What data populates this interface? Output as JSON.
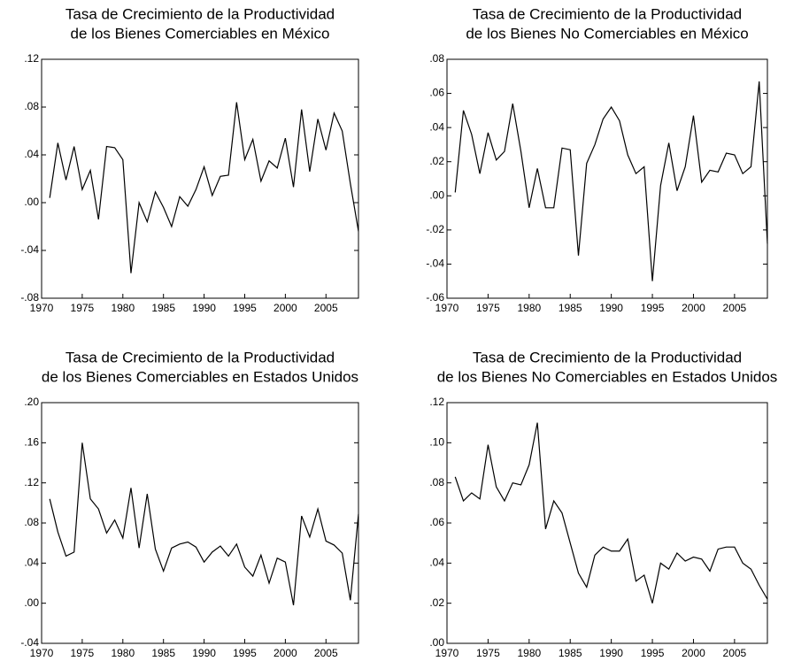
{
  "chart_data": [
    {
      "type": "line",
      "title": [
        "Tasa de Crecimiento de la Productividad",
        "de los Bienes Comerciables en México"
      ],
      "x": [
        1971,
        1972,
        1973,
        1974,
        1975,
        1976,
        1977,
        1978,
        1979,
        1980,
        1981,
        1982,
        1983,
        1984,
        1985,
        1986,
        1987,
        1988,
        1989,
        1990,
        1991,
        1992,
        1993,
        1994,
        1995,
        1996,
        1997,
        1998,
        1999,
        2000,
        2001,
        2002,
        2003,
        2004,
        2005,
        2006,
        2007,
        2008,
        2009
      ],
      "values": [
        0.004,
        0.05,
        0.019,
        0.047,
        0.011,
        0.027,
        -0.014,
        0.047,
        0.046,
        0.036,
        -0.059,
        0.0,
        -0.016,
        0.009,
        -0.004,
        -0.02,
        0.005,
        -0.003,
        0.011,
        0.03,
        0.006,
        0.022,
        0.023,
        0.084,
        0.036,
        0.053,
        0.018,
        0.035,
        0.029,
        0.054,
        0.013,
        0.078,
        0.026,
        0.07,
        0.044,
        0.075,
        0.06,
        0.016,
        -0.024
      ],
      "color": "#000000",
      "xlim": [
        1970,
        2009
      ],
      "xticks": [
        1970,
        1975,
        1980,
        1985,
        1990,
        1995,
        2000,
        2005
      ],
      "ylim": [
        -0.08,
        0.12
      ],
      "yticks": [
        {
          "value": -0.08,
          "label": "-.08"
        },
        {
          "value": -0.04,
          "label": "-.04"
        },
        {
          "value": 0,
          "label": ".00"
        },
        {
          "value": 0.04,
          "label": ".04"
        },
        {
          "value": 0.08,
          "label": ".08"
        },
        {
          "value": 0.12,
          "label": ".12"
        }
      ]
    },
    {
      "type": "line",
      "title": [
        "Tasa de Crecimiento de la Productividad",
        "de los Bienes No Comerciables en México"
      ],
      "x": [
        1971,
        1972,
        1973,
        1974,
        1975,
        1976,
        1977,
        1978,
        1979,
        1980,
        1981,
        1982,
        1983,
        1984,
        1985,
        1986,
        1987,
        1988,
        1989,
        1990,
        1991,
        1992,
        1993,
        1994,
        1995,
        1996,
        1997,
        1998,
        1999,
        2000,
        2001,
        2002,
        2003,
        2004,
        2005,
        2006,
        2007,
        2008,
        2009
      ],
      "values": [
        0.002,
        0.05,
        0.036,
        0.013,
        0.037,
        0.021,
        0.026,
        0.054,
        0.026,
        -0.007,
        0.016,
        -0.007,
        -0.007,
        0.028,
        0.027,
        -0.035,
        0.019,
        0.03,
        0.045,
        0.052,
        0.044,
        0.024,
        0.013,
        0.017,
        -0.05,
        0.006,
        0.031,
        0.003,
        0.017,
        0.047,
        0.008,
        0.015,
        0.014,
        0.025,
        0.024,
        0.013,
        0.017,
        0.067,
        -0.028
      ],
      "color": "#000000",
      "xlim": [
        1970,
        2009
      ],
      "xticks": [
        1970,
        1975,
        1980,
        1985,
        1990,
        1995,
        2000,
        2005
      ],
      "ylim": [
        -0.06,
        0.08
      ],
      "yticks": [
        {
          "value": -0.06,
          "label": "-.06"
        },
        {
          "value": -0.04,
          "label": "-.04"
        },
        {
          "value": -0.02,
          "label": "-.02"
        },
        {
          "value": 0,
          "label": ".00"
        },
        {
          "value": 0.02,
          "label": ".02"
        },
        {
          "value": 0.04,
          "label": ".04"
        },
        {
          "value": 0.06,
          "label": ".06"
        },
        {
          "value": 0.08,
          "label": ".08"
        }
      ]
    },
    {
      "type": "line",
      "title": [
        "Tasa de Crecimiento de la Productividad",
        "de los Bienes Comerciables en Estados Unidos"
      ],
      "x": [
        1971,
        1972,
        1973,
        1974,
        1975,
        1976,
        1977,
        1978,
        1979,
        1980,
        1981,
        1982,
        1983,
        1984,
        1985,
        1986,
        1987,
        1988,
        1989,
        1990,
        1991,
        1992,
        1993,
        1994,
        1995,
        1996,
        1997,
        1998,
        1999,
        2000,
        2001,
        2002,
        2003,
        2004,
        2005,
        2006,
        2007,
        2008,
        2009
      ],
      "values": [
        0.104,
        0.071,
        0.047,
        0.051,
        0.16,
        0.104,
        0.094,
        0.07,
        0.083,
        0.065,
        0.115,
        0.055,
        0.109,
        0.054,
        0.032,
        0.055,
        0.059,
        0.061,
        0.056,
        0.041,
        0.051,
        0.057,
        0.047,
        0.059,
        0.036,
        0.027,
        0.048,
        0.02,
        0.045,
        0.041,
        -0.002,
        0.087,
        0.066,
        0.094,
        0.062,
        0.058,
        0.05,
        0.003,
        0.089
      ],
      "color": "#000000",
      "xlim": [
        1970,
        2009
      ],
      "xticks": [
        1970,
        1975,
        1980,
        1985,
        1990,
        1995,
        2000,
        2005
      ],
      "ylim": [
        -0.04,
        0.2
      ],
      "yticks": [
        {
          "value": -0.04,
          "label": "-.04"
        },
        {
          "value": 0,
          "label": ".00"
        },
        {
          "value": 0.04,
          "label": ".04"
        },
        {
          "value": 0.08,
          "label": ".08"
        },
        {
          "value": 0.12,
          "label": ".12"
        },
        {
          "value": 0.16,
          "label": ".16"
        },
        {
          "value": 0.2,
          "label": ".20"
        }
      ]
    },
    {
      "type": "line",
      "title": [
        "Tasa de Crecimiento de la Productividad",
        "de los Bienes No Comerciables en Estados Unidos"
      ],
      "x": [
        1971,
        1972,
        1973,
        1974,
        1975,
        1976,
        1977,
        1978,
        1979,
        1980,
        1981,
        1982,
        1983,
        1984,
        1985,
        1986,
        1987,
        1988,
        1989,
        1990,
        1991,
        1992,
        1993,
        1994,
        1995,
        1996,
        1997,
        1998,
        1999,
        2000,
        2001,
        2002,
        2003,
        2004,
        2005,
        2006,
        2007,
        2008,
        2009
      ],
      "values": [
        0.083,
        0.071,
        0.075,
        0.072,
        0.099,
        0.078,
        0.071,
        0.08,
        0.079,
        0.089,
        0.11,
        0.057,
        0.071,
        0.065,
        0.05,
        0.035,
        0.028,
        0.044,
        0.048,
        0.046,
        0.046,
        0.052,
        0.031,
        0.034,
        0.02,
        0.04,
        0.037,
        0.045,
        0.041,
        0.043,
        0.042,
        0.036,
        0.047,
        0.048,
        0.048,
        0.04,
        0.037,
        0.029,
        0.022
      ],
      "color": "#000000",
      "xlim": [
        1970,
        2009
      ],
      "xticks": [
        1970,
        1975,
        1980,
        1985,
        1990,
        1995,
        2000,
        2005
      ],
      "ylim": [
        0,
        0.12
      ],
      "yticks": [
        {
          "value": 0,
          "label": ".00"
        },
        {
          "value": 0.02,
          "label": ".02"
        },
        {
          "value": 0.04,
          "label": ".04"
        },
        {
          "value": 0.06,
          "label": ".06"
        },
        {
          "value": 0.08,
          "label": ".08"
        },
        {
          "value": 0.1,
          "label": ".10"
        },
        {
          "value": 0.12,
          "label": ".12"
        }
      ]
    }
  ]
}
